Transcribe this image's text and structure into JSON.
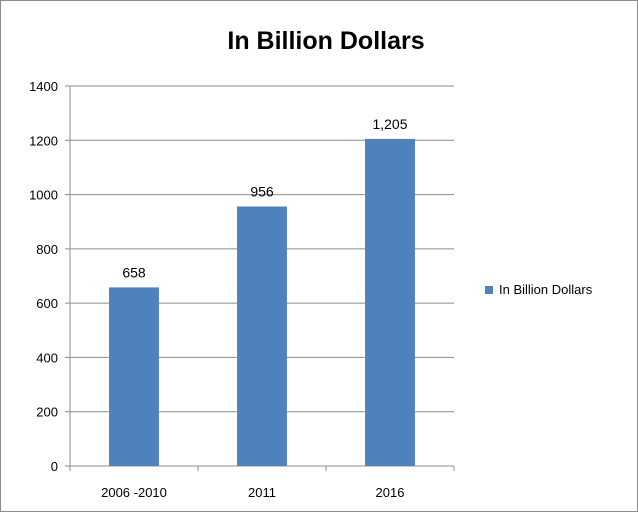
{
  "chart_data": {
    "type": "bar",
    "title": "In Billion Dollars",
    "categories": [
      "2006 -2010",
      "2011",
      "2016"
    ],
    "series": [
      {
        "name": "In Billion Dollars",
        "values": [
          658,
          956,
          1205
        ],
        "labels": [
          "658",
          "956",
          "1,205"
        ],
        "color": "#4f81bd"
      }
    ],
    "ylim": [
      0,
      1400
    ],
    "yticks": [
      0,
      200,
      400,
      600,
      800,
      1000,
      1200,
      1400
    ],
    "grid": true,
    "legend_position": "right"
  }
}
